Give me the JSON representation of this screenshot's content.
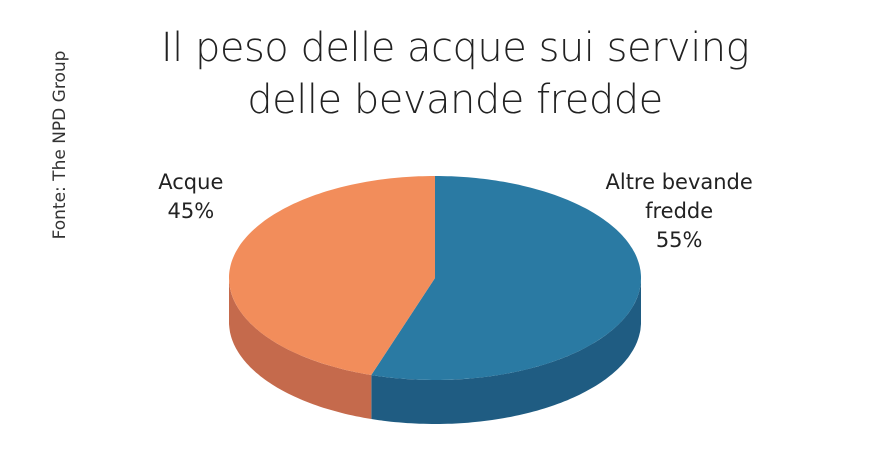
{
  "chart_data": {
    "type": "pie",
    "title": "Il peso delle acque sui serving delle bevande fredde",
    "source": "Fonte: The NPD Group",
    "categories": [
      "Altre bevande fredde",
      "Acque"
    ],
    "values": [
      55,
      45
    ],
    "value_labels": [
      "55%",
      "45%"
    ],
    "colors": [
      "#2a7aa3",
      "#f28d5b"
    ],
    "side_colors": [
      "#1f5c82",
      "#c56a4c"
    ]
  }
}
